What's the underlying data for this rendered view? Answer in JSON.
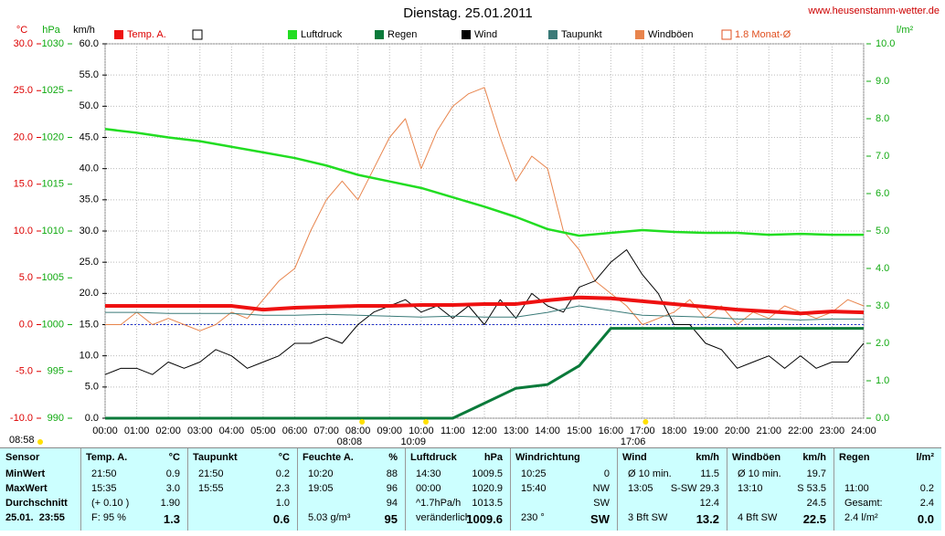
{
  "chart_data": {
    "type": "line",
    "title": "Dienstag. 25.01.2011",
    "source": "www.heusenstamm-wetter.de",
    "axis_units": {
      "y3": "°C",
      "y4": "hPa",
      "y": "km/h",
      "y2": "l/m²"
    },
    "xlim": [
      0,
      24
    ],
    "xticks": [
      {
        "value": 0,
        "label": "00:00"
      },
      {
        "value": 1,
        "label": "01:00"
      },
      {
        "value": 2,
        "label": "02:00"
      },
      {
        "value": 3,
        "label": "03:00"
      },
      {
        "value": 4,
        "label": "04:00"
      },
      {
        "value": 5,
        "label": "05:00"
      },
      {
        "value": 6,
        "label": "06:00"
      },
      {
        "value": 7,
        "label": "07:00"
      },
      {
        "value": 8,
        "label": "08:00"
      },
      {
        "value": 9,
        "label": "09:00"
      },
      {
        "value": 10,
        "label": "10:00"
      },
      {
        "value": 11,
        "label": "11:00"
      },
      {
        "value": 12,
        "label": "12:00"
      },
      {
        "value": 13,
        "label": "13:00"
      },
      {
        "value": 14,
        "label": "14:00"
      },
      {
        "value": 15,
        "label": "15:00"
      },
      {
        "value": 16,
        "label": "16:00"
      },
      {
        "value": 17,
        "label": "17:00"
      },
      {
        "value": 18,
        "label": "18:00"
      },
      {
        "value": 19,
        "label": "19:00"
      },
      {
        "value": 20,
        "label": "20:00"
      },
      {
        "value": 21,
        "label": "21:00"
      },
      {
        "value": 22,
        "label": "22:00"
      },
      {
        "value": 23,
        "label": "23:00"
      },
      {
        "value": 24,
        "label": "24:00"
      }
    ],
    "ylim": [
      0,
      60
    ],
    "yticks": [
      {
        "value": 0,
        "label": "0.0"
      },
      {
        "value": 5,
        "label": "5.0"
      },
      {
        "value": 10,
        "label": "10.0"
      },
      {
        "value": 15,
        "label": "15.0"
      },
      {
        "value": 20,
        "label": "20.0"
      },
      {
        "value": 25,
        "label": "25.0"
      },
      {
        "value": 30,
        "label": "30.0"
      },
      {
        "value": 35,
        "label": "35.0"
      },
      {
        "value": 40,
        "label": "40.0"
      },
      {
        "value": 45,
        "label": "45.0"
      },
      {
        "value": 50,
        "label": "50.0"
      },
      {
        "value": 55,
        "label": "55.0"
      },
      {
        "value": 60,
        "label": "60.0"
      }
    ],
    "y2lim": [
      0,
      10
    ],
    "y2ticks": [
      {
        "value": 0,
        "label": "0.0"
      },
      {
        "value": 1,
        "label": "1.0"
      },
      {
        "value": 2,
        "label": "2.0"
      },
      {
        "value": 3,
        "label": "3.0"
      },
      {
        "value": 4,
        "label": "4.0"
      },
      {
        "value": 5,
        "label": "5.0"
      },
      {
        "value": 6,
        "label": "6.0"
      },
      {
        "value": 7,
        "label": "7.0"
      },
      {
        "value": 8,
        "label": "8.0"
      },
      {
        "value": 9,
        "label": "9.0"
      },
      {
        "value": 10,
        "label": "10.0"
      }
    ],
    "y3lim": [
      -10,
      30
    ],
    "y3ticks": [
      {
        "value": -10,
        "label": "-10.0"
      },
      {
        "value": -5,
        "label": "-5.0"
      },
      {
        "value": 0,
        "label": "0.0"
      },
      {
        "value": 5,
        "label": "5.0"
      },
      {
        "value": 10,
        "label": "10.0"
      },
      {
        "value": 15,
        "label": "15.0"
      },
      {
        "value": 20,
        "label": "20.0"
      },
      {
        "value": 25,
        "label": "25.0"
      },
      {
        "value": 30,
        "label": "30.0"
      }
    ],
    "y4lim": [
      990,
      1030
    ],
    "y4ticks": [
      990,
      995,
      1000,
      1005,
      1010,
      1015,
      1020,
      1025,
      1030
    ],
    "grid": true,
    "series": [
      {
        "name": "Windböen",
        "color": "#e8844c",
        "axis": "y",
        "width": 1,
        "x": [
          0,
          0.5,
          1,
          1.5,
          2,
          2.5,
          3,
          3.5,
          4,
          4.5,
          5,
          5.5,
          6,
          6.5,
          7,
          7.5,
          8,
          8.5,
          9,
          9.5,
          10,
          10.5,
          11,
          11.5,
          12,
          12.5,
          13,
          13.5,
          14,
          14.5,
          15,
          15.5,
          16,
          16.5,
          17,
          17.5,
          18,
          18.5,
          19,
          19.5,
          20,
          20.5,
          21,
          21.5,
          22,
          22.5,
          23,
          23.5,
          24
        ],
        "values": [
          15,
          15,
          17,
          15,
          16,
          15,
          14,
          15,
          17,
          16,
          19,
          22,
          24,
          30,
          35,
          38,
          35,
          40,
          45,
          48,
          40,
          46,
          50,
          52,
          53,
          45,
          38,
          42,
          40,
          30,
          27,
          22,
          20,
          18,
          15,
          16,
          17,
          19,
          16,
          18,
          15,
          17,
          16,
          18,
          17,
          16,
          17,
          19,
          18
        ]
      },
      {
        "name": "Wind",
        "color": "#000000",
        "axis": "y",
        "width": 1,
        "x": [
          0,
          0.5,
          1,
          1.5,
          2,
          2.5,
          3,
          3.5,
          4,
          4.5,
          5,
          5.5,
          6,
          6.5,
          7,
          7.5,
          8,
          8.5,
          9,
          9.5,
          10,
          10.5,
          11,
          11.5,
          12,
          12.5,
          13,
          13.5,
          14,
          14.5,
          15,
          15.5,
          16,
          16.5,
          17,
          17.5,
          18,
          18.5,
          19,
          19.5,
          20,
          20.5,
          21,
          21.5,
          22,
          22.5,
          23,
          23.5,
          24
        ],
        "values": [
          7,
          8,
          8,
          7,
          9,
          8,
          9,
          11,
          10,
          8,
          9,
          10,
          12,
          12,
          13,
          12,
          15,
          17,
          18,
          19,
          17,
          18,
          16,
          18,
          15,
          19,
          16,
          20,
          18,
          17,
          21,
          22,
          25,
          27,
          23,
          20,
          15,
          15,
          12,
          11,
          8,
          9,
          10,
          8,
          10,
          8,
          9,
          9,
          12
        ]
      },
      {
        "name": "Taupunkt",
        "color": "#3a7a78",
        "axis": "y3",
        "width": 1,
        "x": [
          0,
          1,
          2,
          3,
          4,
          5,
          6,
          7,
          8,
          9,
          10,
          11,
          12,
          13,
          14,
          15,
          16,
          17,
          18,
          19,
          20,
          21,
          22,
          23,
          24
        ],
        "values": [
          1.3,
          1.3,
          1.2,
          1.2,
          1.2,
          1.0,
          1.0,
          1.1,
          1.0,
          0.9,
          0.8,
          0.9,
          0.8,
          0.8,
          1.3,
          2.0,
          1.5,
          1.0,
          0.9,
          0.8,
          0.6,
          0.6,
          0.5,
          0.6,
          0.6
        ]
      },
      {
        "name": "Luftdruck",
        "color": "#22dd22",
        "axis": "y4",
        "width": 2.5,
        "x": [
          0,
          1,
          2,
          3,
          4,
          5,
          6,
          7,
          8,
          9,
          10,
          11,
          12,
          13,
          14,
          15,
          16,
          17,
          18,
          19,
          20,
          21,
          22,
          23,
          24
        ],
        "values": [
          1020.9,
          1020.5,
          1020.0,
          1019.6,
          1019.0,
          1018.4,
          1017.8,
          1017.0,
          1016.0,
          1015.3,
          1014.6,
          1013.6,
          1012.6,
          1011.5,
          1010.2,
          1009.5,
          1009.8,
          1010.1,
          1009.9,
          1009.8,
          1009.8,
          1009.6,
          1009.7,
          1009.6,
          1009.6
        ]
      },
      {
        "name": "Regen",
        "color": "#0a7a3a",
        "axis": "y2",
        "width": 3,
        "x": [
          0,
          1,
          2,
          3,
          4,
          5,
          6,
          7,
          8,
          9,
          10,
          11,
          12,
          13,
          14,
          15,
          16,
          17,
          18,
          19,
          20,
          21,
          22,
          23,
          24
        ],
        "values": [
          0,
          0,
          0,
          0,
          0,
          0,
          0,
          0,
          0,
          0,
          0,
          0,
          0.4,
          0.8,
          0.9,
          1.4,
          2.4,
          2.4,
          2.4,
          2.4,
          2.4,
          2.4,
          2.4,
          2.4,
          2.4
        ]
      },
      {
        "name": "Temp. A.",
        "color": "#ee1111",
        "axis": "y3",
        "width": 4,
        "x": [
          0,
          1,
          2,
          3,
          4,
          5,
          6,
          7,
          8,
          9,
          10,
          11,
          12,
          13,
          14,
          15,
          16,
          17,
          18,
          19,
          20,
          21,
          22,
          23,
          24
        ],
        "values": [
          2.0,
          2.0,
          2.0,
          2.0,
          2.0,
          1.6,
          1.8,
          1.9,
          2.0,
          2.0,
          2.1,
          2.1,
          2.2,
          2.2,
          2.6,
          2.9,
          2.8,
          2.5,
          2.2,
          1.9,
          1.6,
          1.4,
          1.2,
          1.4,
          1.3
        ]
      }
    ],
    "legend_note": {
      "name": "1.8 Monat-Ø",
      "color": "#e05020"
    },
    "annotations": [
      {
        "text": "08:08",
        "x": 8.13
      },
      {
        "text": "10:09",
        "x": 10.15
      },
      {
        "text": "17:06",
        "x": 17.1
      }
    ],
    "corner_note": "08:58"
  },
  "table": {
    "columns": [
      {
        "header": "Sensor",
        "rows": [
          "MinWert",
          "MaxWert",
          "Durchschnitt",
          "25.01.  23:55"
        ]
      },
      {
        "header": "Temp. A.",
        "unit": "°C",
        "rows": [
          [
            "21:50",
            "0.9"
          ],
          [
            "15:35",
            "3.0"
          ],
          [
            "(+ 0.10 )",
            "1.90"
          ],
          [
            "F: 95 %",
            "1.3"
          ]
        ]
      },
      {
        "header": "Taupunkt",
        "unit": "°C",
        "rows": [
          [
            "21:50",
            "0.2"
          ],
          [
            "15:55",
            "2.3"
          ],
          [
            null,
            "1.0"
          ],
          [
            null,
            "0.6"
          ]
        ]
      },
      {
        "header": "Feuchte A.",
        "unit": "%",
        "rows": [
          [
            "10:20",
            "88"
          ],
          [
            "19:05",
            "96"
          ],
          [
            null,
            "94"
          ],
          [
            "5.03 g/m³",
            "95"
          ]
        ]
      },
      {
        "header": "Luftdruck",
        "unit": "hPa",
        "rows": [
          [
            "14:30",
            "1009.5"
          ],
          [
            "00:00",
            "1020.9"
          ],
          [
            "^1.7hPa/h",
            "1013.5"
          ],
          [
            "veränderlich",
            "1009.6"
          ]
        ]
      },
      {
        "header": "Windrichtung",
        "rows": [
          [
            "10:25",
            "0"
          ],
          [
            "15:40",
            "NW"
          ],
          [
            null,
            "SW"
          ],
          [
            "230 °",
            "SW"
          ]
        ]
      },
      {
        "header": "Wind",
        "unit": "km/h",
        "rows": [
          [
            "Ø 10 min.",
            "11.5"
          ],
          [
            "13:05",
            "S-SW 29.3"
          ],
          [
            null,
            "12.4"
          ],
          [
            "3 Bft SW",
            "13.2"
          ]
        ]
      },
      {
        "header": "Windböen",
        "unit": "km/h",
        "rows": [
          [
            "Ø 10 min.",
            "19.7"
          ],
          [
            "13:10",
            "S 53.5"
          ],
          [
            null,
            "24.5"
          ],
          [
            "4 Bft SW",
            "22.5"
          ]
        ]
      },
      {
        "header": "Regen",
        "unit": "l/m²",
        "rows": [
          [
            null,
            null
          ],
          [
            "11:00",
            "0.2"
          ],
          [
            "Gesamt:",
            "2.4"
          ],
          [
            "2.4 l/m²",
            "0.0"
          ]
        ]
      }
    ]
  }
}
